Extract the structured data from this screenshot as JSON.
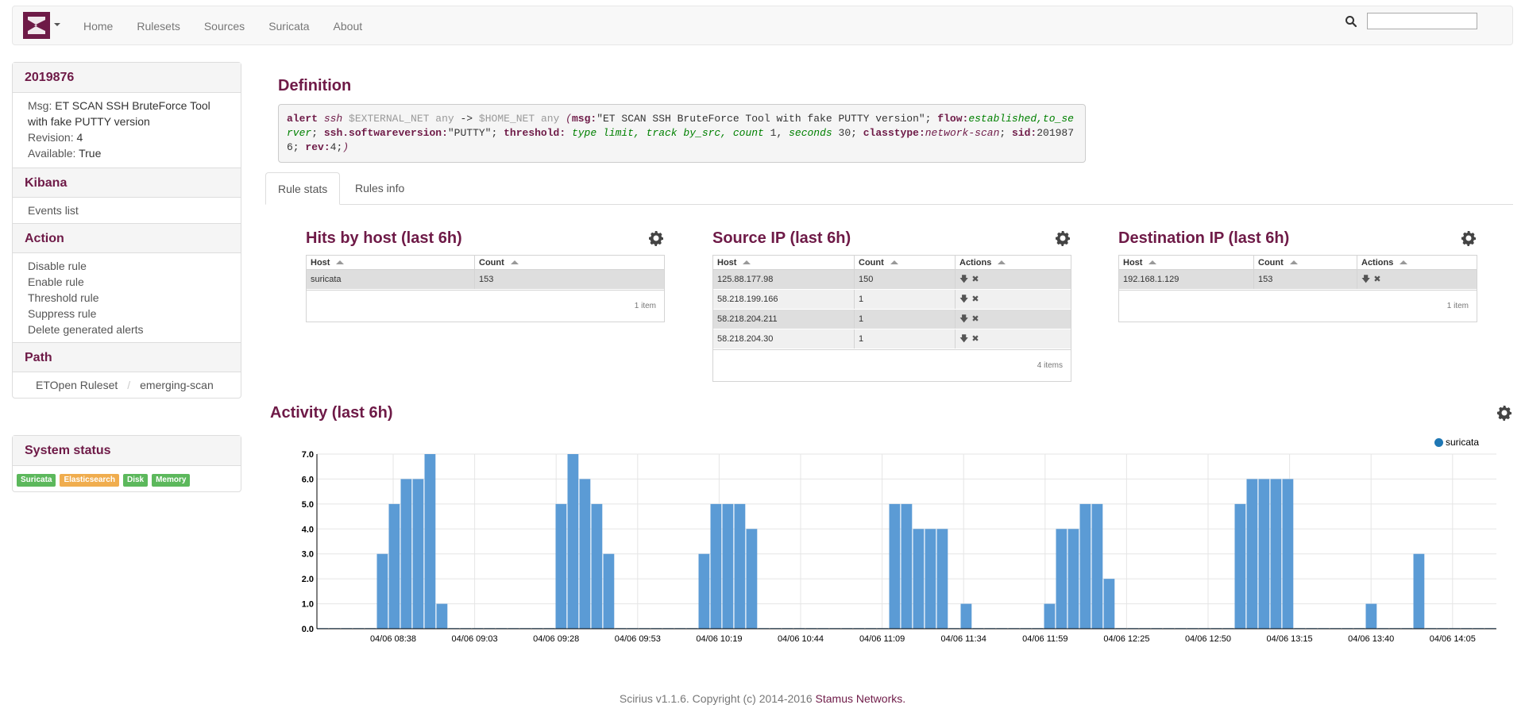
{
  "nav": {
    "items": [
      "Home",
      "Rulesets",
      "Sources",
      "Suricata",
      "About"
    ],
    "search_value": ""
  },
  "sidebar": {
    "rule_id": "2019876",
    "msg_label": "Msg:",
    "msg_value": "ET SCAN SSH BruteForce Tool with fake PUTTY version",
    "revision_label": "Revision:",
    "revision_value": "4",
    "available_label": "Available:",
    "available_value": "True",
    "kibana_title": "Kibana",
    "kibana_links": [
      "Events list"
    ],
    "action_title": "Action",
    "actions": [
      "Disable rule",
      "Enable rule",
      "Threshold rule",
      "Suppress rule",
      "Delete generated alerts"
    ],
    "path_title": "Path",
    "path": [
      "ETOpen Ruleset",
      "emerging-scan"
    ],
    "path_separator": "/",
    "status_title": "System status",
    "status_badges": [
      {
        "label": "Suricata",
        "color": "#5cb85c"
      },
      {
        "label": "Elasticsearch",
        "color": "#f0ad4e"
      },
      {
        "label": "Disk",
        "color": "#5cb85c"
      },
      {
        "label": "Memory",
        "color": "#5cb85c"
      }
    ]
  },
  "definition": {
    "title": "Definition",
    "rule": {
      "action": "alert",
      "proto": "ssh",
      "src": "$EXTERNAL_NET",
      "src_port": "any",
      "arrow": "->",
      "dst": "$HOME_NET",
      "dst_port": "any",
      "open": "(",
      "msg_key": "msg:",
      "msg_val": "\"ET SCAN SSH BruteForce Tool with fake PUTTY version\";",
      "flow_key": "flow:",
      "flow_val": "established,to_server",
      "semi": ";",
      "ssh_key": "ssh.softwareversion:",
      "ssh_val": "\"PUTTY\";",
      "thr_key": "threshold:",
      "thr_type_k": "type",
      "thr_type_v": "limit,",
      "thr_track_k": "track",
      "thr_track_v": "by_src,",
      "thr_count_k": "count",
      "thr_count_v": "1,",
      "thr_sec_k": "seconds",
      "thr_sec_v": "30;",
      "class_key": "classtype:",
      "class_val": "network-scan",
      "sid_key": "sid:",
      "sid_val": "2019876;",
      "rev_key": "rev:",
      "rev_val": "4;",
      "close": ")"
    }
  },
  "tabs": [
    "Rule stats",
    "Rules info"
  ],
  "hits_by_host": {
    "title": "Hits by host (last 6h)",
    "columns": [
      "Host",
      "Count"
    ],
    "rows": [
      [
        "suricata",
        "153"
      ]
    ],
    "footer": "1 item"
  },
  "source_ip": {
    "title": "Source IP (last 6h)",
    "columns": [
      "Host",
      "Count",
      "Actions"
    ],
    "rows": [
      [
        "125.88.177.98",
        "150"
      ],
      [
        "58.218.199.166",
        "1"
      ],
      [
        "58.218.204.211",
        "1"
      ],
      [
        "58.218.204.30",
        "1"
      ]
    ],
    "footer": "4 items"
  },
  "destination_ip": {
    "title": "Destination IP (last 6h)",
    "columns": [
      "Host",
      "Count",
      "Actions"
    ],
    "rows": [
      [
        "192.168.1.129",
        "153"
      ]
    ],
    "footer": "1 item"
  },
  "activity": {
    "title": "Activity (last 6h)"
  },
  "chart_data": {
    "type": "bar",
    "title": "Activity (last 6h)",
    "series": [
      {
        "name": "suricata",
        "color": "#5b9bd5"
      }
    ],
    "ylim": [
      0,
      7
    ],
    "y_ticks": [
      "0.0",
      "1.0",
      "2.0",
      "3.0",
      "4.0",
      "5.0",
      "6.0",
      "7.0"
    ],
    "x_ticks": [
      "04/06 08:38",
      "04/06 09:03",
      "04/06 09:28",
      "04/06 09:53",
      "04/06 10:19",
      "04/06 10:44",
      "04/06 11:09",
      "04/06 11:34",
      "04/06 11:59",
      "04/06 12:25",
      "04/06 12:50",
      "04/06 13:15",
      "04/06 13:40",
      "04/06 14:05"
    ],
    "values": [
      0,
      0,
      0,
      0,
      0,
      3,
      5,
      6,
      6,
      7,
      1,
      0,
      0,
      0,
      0,
      0,
      0,
      0,
      0,
      0,
      5,
      7,
      6,
      5,
      3,
      0,
      0,
      0,
      0,
      0,
      0,
      0,
      3,
      5,
      5,
      5,
      4,
      0,
      0,
      0,
      0,
      0,
      0,
      0,
      0,
      0,
      0,
      0,
      5,
      5,
      4,
      4,
      4,
      0,
      1,
      0,
      0,
      0,
      0,
      0,
      0,
      1,
      4,
      4,
      5,
      5,
      2,
      0,
      0,
      0,
      0,
      0,
      0,
      0,
      0,
      0,
      0,
      5,
      6,
      6,
      6,
      6,
      0,
      0,
      0,
      0,
      0,
      0,
      1,
      0,
      0,
      0,
      3,
      0,
      0,
      0,
      0,
      0,
      0
    ]
  },
  "footer": {
    "text": "Scirius v1.1.6. Copyright (c) 2014-2016",
    "brand": "Stamus Networks."
  }
}
